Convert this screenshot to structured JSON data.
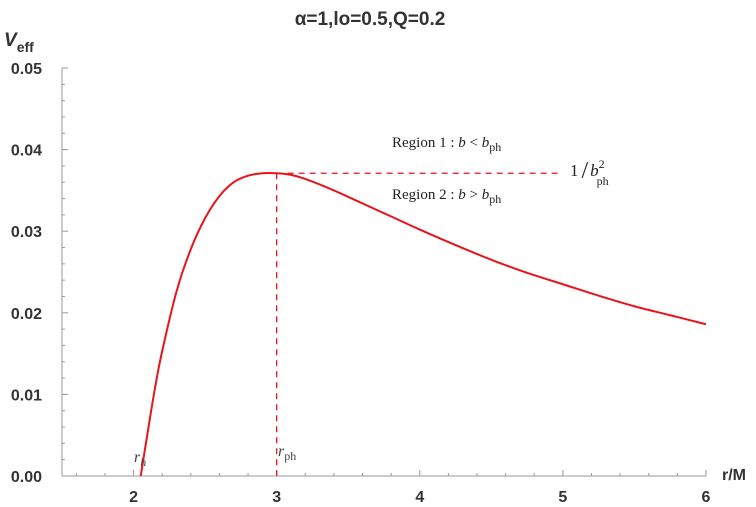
{
  "chart_data": {
    "type": "line",
    "title": "α=1,lo=0.5,Q=0.2",
    "ylabel_main": "V",
    "ylabel_sub": "eff",
    "xlabel": "r/M",
    "xlim": [
      1.5,
      6.0
    ],
    "ylim": [
      0.0,
      0.05
    ],
    "xticks": [
      "2",
      "3",
      "4",
      "5",
      "6"
    ],
    "xtick_values": [
      2,
      3,
      4,
      5,
      6
    ],
    "yticks": [
      "0.00",
      "0.01",
      "0.02",
      "0.03",
      "0.04",
      "0.05"
    ],
    "ytick_values": [
      0.0,
      0.01,
      0.02,
      0.03,
      0.04,
      0.05
    ],
    "line_color": "#e8141c",
    "series": [
      {
        "x": [
          2.05,
          2.1,
          2.15,
          2.2,
          2.3,
          2.4,
          2.5,
          2.6,
          2.7,
          2.8,
          2.9,
          3.0,
          3.1,
          3.2,
          3.4,
          3.6,
          3.8,
          4.0,
          4.25,
          4.5,
          4.75,
          5.0,
          5.25,
          5.5,
          5.75,
          6.0
        ],
        "y": [
          0.0,
          0.0055,
          0.0108,
          0.0153,
          0.0226,
          0.0278,
          0.0316,
          0.0343,
          0.036,
          0.0368,
          0.0371,
          0.0371,
          0.0369,
          0.0364,
          0.035,
          0.0334,
          0.0318,
          0.0302,
          0.0283,
          0.0265,
          0.0249,
          0.0235,
          0.0221,
          0.0208,
          0.0197,
          0.0186
        ]
      }
    ],
    "peak": {
      "x": 3.0,
      "y": 0.0371
    },
    "horizon_x": 2.05,
    "annotations": {
      "region1": {
        "prefix": "Region 1 : ",
        "var": "b",
        "op": " < ",
        "b2": "b",
        "sub": "ph"
      },
      "region2": {
        "prefix": "Region 2 : ",
        "var": "b",
        "op": " > ",
        "b2": "b",
        "sub": "ph"
      },
      "inv_b": {
        "one": "1",
        "slash": "/",
        "b": "b",
        "sup": "2",
        "sub": "ph"
      },
      "rh": {
        "r": "r",
        "sub": "h"
      },
      "rph": {
        "r": "r",
        "sub": "ph"
      }
    }
  }
}
